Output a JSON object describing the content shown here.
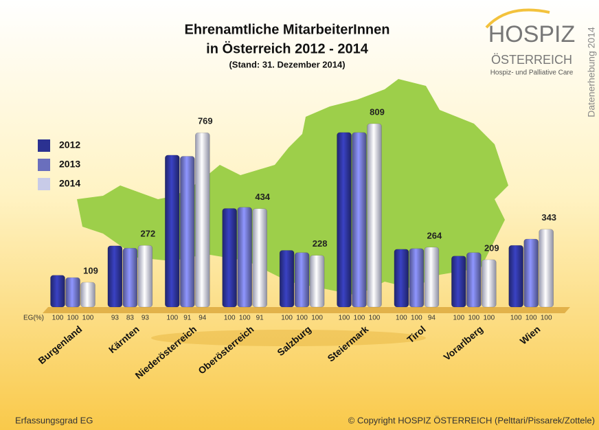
{
  "chart_data": {
    "type": "bar",
    "title": "Ehrenamtliche MitarbeiterInnen",
    "title_line2": "in Österreich 2012 - 2014",
    "subtitle": "(Stand: 31. Dezember 2014)",
    "categories": [
      "Burgenland",
      "Kärnten",
      "Niederösterreich",
      "Oberösterreich",
      "Salzburg",
      "Steiermark",
      "Tirol",
      "Vorarlberg",
      "Wien"
    ],
    "series": [
      {
        "name": "2012",
        "color": "#2b3191",
        "values": [
          140,
          270,
          670,
          435,
          250,
          770,
          255,
          225,
          272
        ],
        "eg": [
          100,
          93,
          100,
          100,
          100,
          100,
          100,
          100,
          100
        ]
      },
      {
        "name": "2013",
        "color": "#6a6fbd",
        "values": [
          130,
          260,
          665,
          440,
          240,
          770,
          258,
          240,
          300
        ],
        "eg": [
          100,
          83,
          91,
          100,
          100,
          100,
          100,
          100,
          100
        ]
      },
      {
        "name": "2014",
        "color": "#c8cbe8",
        "values": [
          109,
          272,
          769,
          434,
          228,
          809,
          264,
          209,
          343
        ],
        "eg": [
          100,
          93,
          94,
          91,
          100,
          100,
          94,
          100,
          100
        ]
      }
    ],
    "eg_label": "EG(%)",
    "logo": {
      "name": "HOSPIZ",
      "country": "ÖSTERREICH",
      "tagline": "Hospiz- und Palliative Care",
      "survey": "Datenerhebung 2014"
    },
    "footer_left": "Erfassungsgrad EG",
    "footer_right": "© Copyright HOSPIZ ÖSTERREICH (Pelttari/Pissarek/Zottele)"
  }
}
